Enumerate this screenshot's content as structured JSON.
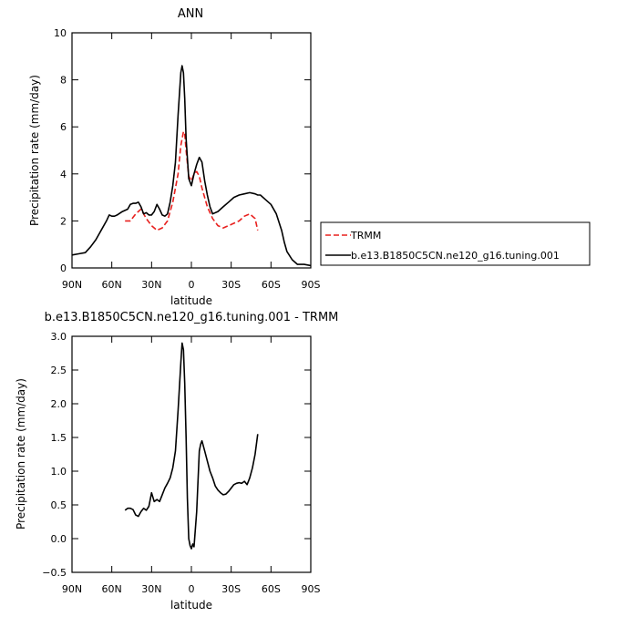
{
  "chart_data": [
    {
      "type": "line",
      "title": "ANN",
      "xlabel": "latitude",
      "ylabel": "Precipitation rate  (mm/day)",
      "xlim": [
        90,
        -90
      ],
      "ylim": [
        0,
        10
      ],
      "x_ticks": [
        {
          "value": 90,
          "label": "90N"
        },
        {
          "value": 60,
          "label": "60N"
        },
        {
          "value": 30,
          "label": "30N"
        },
        {
          "value": 0,
          "label": "0"
        },
        {
          "value": -30,
          "label": "30S"
        },
        {
          "value": -60,
          "label": "60S"
        },
        {
          "value": -90,
          "label": "90S"
        }
      ],
      "y_ticks": [
        {
          "value": 0,
          "label": "0"
        },
        {
          "value": 2,
          "label": "2"
        },
        {
          "value": 4,
          "label": "4"
        },
        {
          "value": 6,
          "label": "6"
        },
        {
          "value": 8,
          "label": "8"
        },
        {
          "value": 10,
          "label": "10"
        }
      ],
      "legend": {
        "placement": "right",
        "entries": [
          {
            "label": "TRMM",
            "color": "#e8201e",
            "dash": "dashed"
          },
          {
            "label": "b.e13.B1850C5CN.ne120_g16.tuning.001",
            "color": "#000000",
            "dash": "solid"
          }
        ]
      },
      "series": [
        {
          "name": "TRMM",
          "color": "#e8201e",
          "dash": "dashed",
          "x": [
            50,
            46,
            42,
            38,
            34,
            30,
            26,
            22,
            18,
            14,
            10,
            8,
            6,
            5,
            4,
            2,
            0,
            -2,
            -4,
            -6,
            -8,
            -12,
            -16,
            -20,
            -24,
            -28,
            -32,
            -36,
            -40,
            -44,
            -48,
            -50
          ],
          "y": [
            2.0,
            2.0,
            2.3,
            2.5,
            2.1,
            1.8,
            1.6,
            1.7,
            2.0,
            2.8,
            4.0,
            5.2,
            5.8,
            5.7,
            5.0,
            3.9,
            3.7,
            4.0,
            4.1,
            3.9,
            3.4,
            2.6,
            2.1,
            1.8,
            1.7,
            1.8,
            1.9,
            2.0,
            2.2,
            2.3,
            2.1,
            1.6
          ]
        },
        {
          "name": "b.e13.B1850C5CN.ne120_g16.tuning.001",
          "color": "#000000",
          "dash": "solid",
          "x": [
            90,
            85,
            80,
            76,
            72,
            68,
            64,
            62,
            60,
            58,
            56,
            52,
            48,
            46,
            44,
            42,
            40,
            38,
            36,
            34,
            32,
            30,
            28,
            26,
            24,
            22,
            20,
            18,
            16,
            14,
            12,
            10,
            8,
            7,
            6,
            5,
            4,
            2,
            0,
            -2,
            -4,
            -6,
            -8,
            -10,
            -12,
            -14,
            -16,
            -20,
            -24,
            -28,
            -32,
            -36,
            -40,
            -44,
            -48,
            -50,
            -52,
            -56,
            -60,
            -64,
            -68,
            -70,
            -72,
            -76,
            -80,
            -85,
            -90
          ],
          "y": [
            0.55,
            0.6,
            0.65,
            0.9,
            1.2,
            1.6,
            2.0,
            2.25,
            2.2,
            2.2,
            2.25,
            2.4,
            2.5,
            2.7,
            2.75,
            2.75,
            2.8,
            2.6,
            2.3,
            2.35,
            2.25,
            2.25,
            2.4,
            2.7,
            2.5,
            2.25,
            2.2,
            2.3,
            2.8,
            3.5,
            4.5,
            6.5,
            8.3,
            8.6,
            8.3,
            7.2,
            5.5,
            3.8,
            3.5,
            4.0,
            4.4,
            4.7,
            4.5,
            3.7,
            3.1,
            2.6,
            2.3,
            2.4,
            2.6,
            2.8,
            3.0,
            3.1,
            3.15,
            3.2,
            3.15,
            3.1,
            3.1,
            2.9,
            2.7,
            2.3,
            1.6,
            1.1,
            0.7,
            0.35,
            0.15,
            0.15,
            0.1
          ]
        }
      ]
    },
    {
      "type": "line",
      "title": "b.e13.B1850C5CN.ne120_g16.tuning.001  -  TRMM",
      "xlabel": "latitude",
      "ylabel": "Precipitation rate  (mm/day)",
      "xlim": [
        90,
        -90
      ],
      "ylim": [
        -0.5,
        3.0
      ],
      "x_ticks": [
        {
          "value": 90,
          "label": "90N"
        },
        {
          "value": 60,
          "label": "60N"
        },
        {
          "value": 30,
          "label": "30N"
        },
        {
          "value": 0,
          "label": "0"
        },
        {
          "value": -30,
          "label": "30S"
        },
        {
          "value": -60,
          "label": "60S"
        },
        {
          "value": -90,
          "label": "90S"
        }
      ],
      "y_ticks": [
        {
          "value": -0.5,
          "label": "−0.5"
        },
        {
          "value": 0,
          "label": "0.0"
        },
        {
          "value": 0.5,
          "label": "0.5"
        },
        {
          "value": 1.0,
          "label": "1.0"
        },
        {
          "value": 1.5,
          "label": "1.5"
        },
        {
          "value": 2.0,
          "label": "2.0"
        },
        {
          "value": 2.5,
          "label": "2.5"
        },
        {
          "value": 3.0,
          "label": "3.0"
        }
      ],
      "series": [
        {
          "color": "#000000",
          "dash": "solid",
          "x": [
            50,
            48,
            46,
            44,
            42,
            40,
            38,
            36,
            34,
            32,
            30,
            28,
            26,
            24,
            22,
            20,
            18,
            16,
            14,
            12,
            10,
            8,
            7,
            6,
            5,
            4,
            3,
            2,
            1,
            0,
            -1,
            -2,
            -4,
            -6,
            -7,
            -8,
            -10,
            -12,
            -14,
            -16,
            -18,
            -20,
            -22,
            -24,
            -26,
            -28,
            -30,
            -32,
            -34,
            -36,
            -38,
            -40,
            -42,
            -44,
            -46,
            -48,
            -50
          ],
          "y": [
            0.42,
            0.45,
            0.45,
            0.43,
            0.35,
            0.33,
            0.4,
            0.45,
            0.42,
            0.48,
            0.68,
            0.55,
            0.58,
            0.55,
            0.65,
            0.75,
            0.82,
            0.9,
            1.05,
            1.3,
            1.9,
            2.6,
            2.9,
            2.8,
            2.3,
            1.5,
            0.6,
            0.0,
            -0.1,
            -0.15,
            -0.08,
            -0.12,
            0.4,
            1.3,
            1.4,
            1.45,
            1.3,
            1.15,
            1.0,
            0.9,
            0.78,
            0.72,
            0.68,
            0.65,
            0.66,
            0.7,
            0.75,
            0.8,
            0.82,
            0.83,
            0.82,
            0.85,
            0.8,
            0.9,
            1.05,
            1.25,
            1.55
          ]
        }
      ]
    }
  ]
}
